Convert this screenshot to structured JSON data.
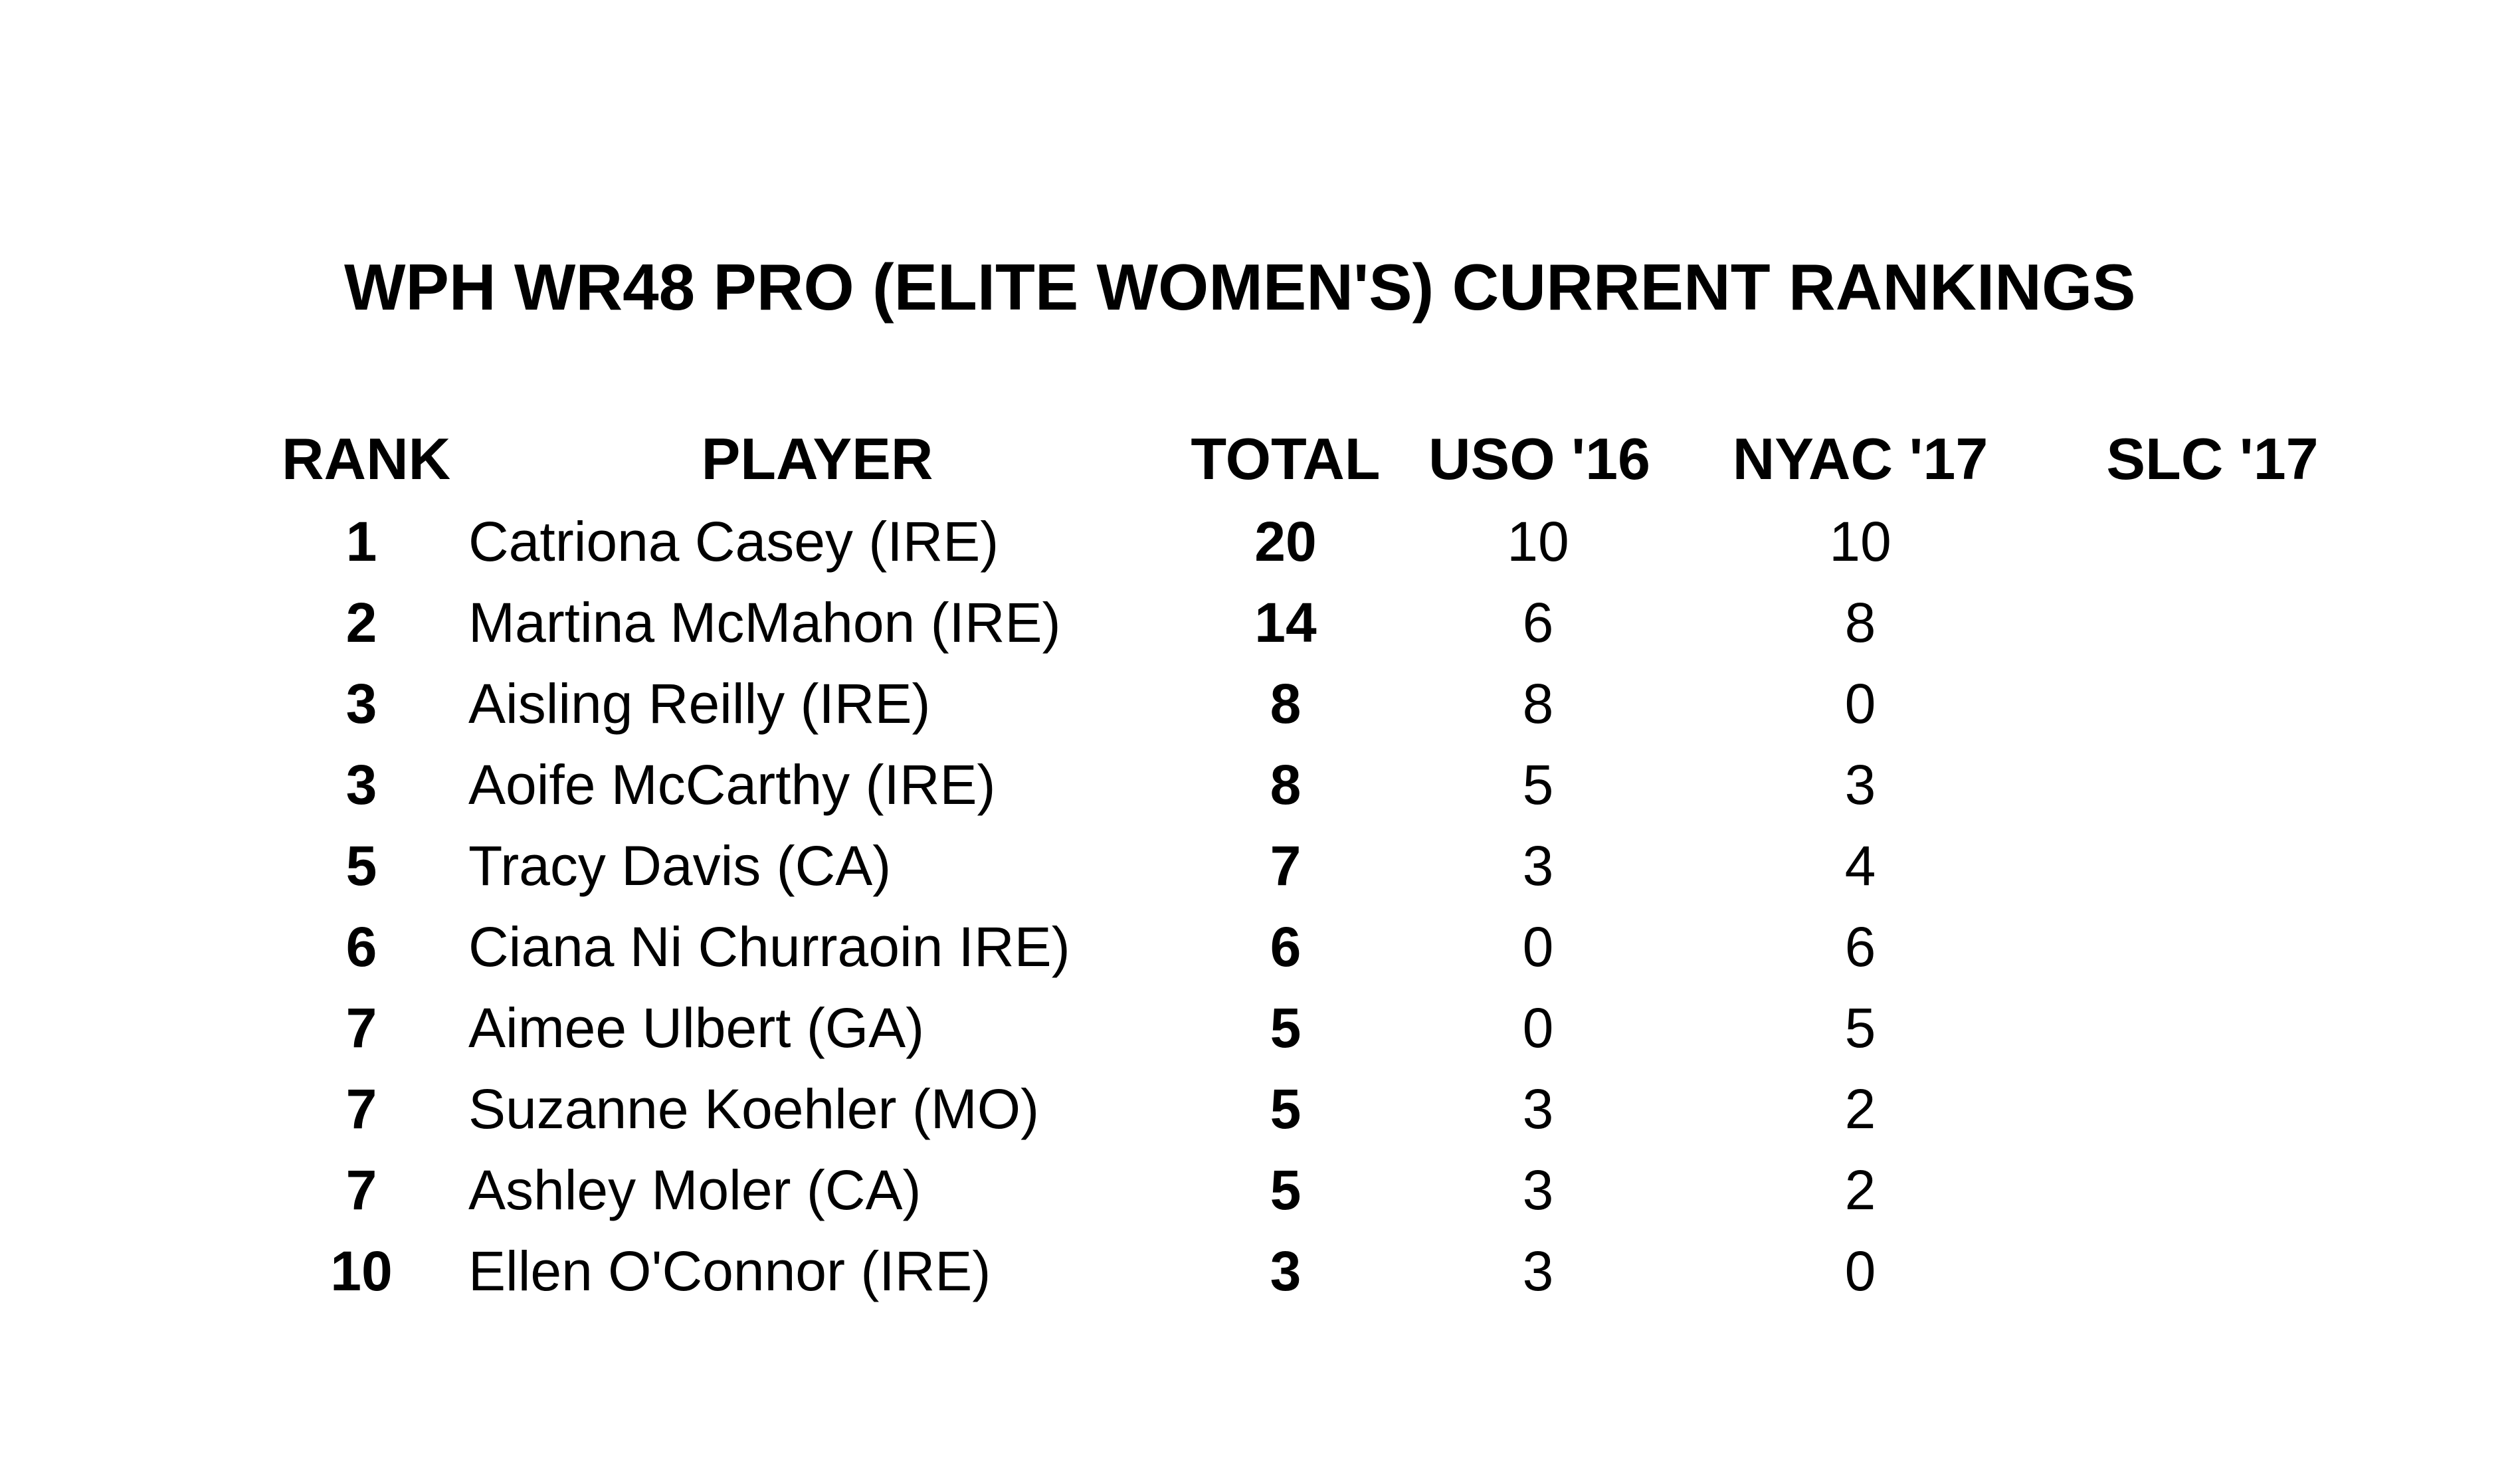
{
  "title": "WPH WR48 PRO (ELITE WOMEN'S) CURRENT RANKINGS",
  "headers": {
    "rank": "RANK",
    "player": "PLAYER",
    "total": "TOTAL",
    "uso16": "USO '16",
    "nyac17": "NYAC '17",
    "slc17": "SLC '17"
  },
  "rows": [
    {
      "rank": "1",
      "player": "Catriona Casey (IRE)",
      "total": "20",
      "uso16": "10",
      "nyac17": "10",
      "slc17": ""
    },
    {
      "rank": "2",
      "player": "Martina McMahon (IRE)",
      "total": "14",
      "uso16": "6",
      "nyac17": "8",
      "slc17": ""
    },
    {
      "rank": "3",
      "player": "Aisling Reilly (IRE)",
      "total": "8",
      "uso16": "8",
      "nyac17": "0",
      "slc17": ""
    },
    {
      "rank": "3",
      "player": "Aoife McCarthy (IRE)",
      "total": "8",
      "uso16": "5",
      "nyac17": "3",
      "slc17": ""
    },
    {
      "rank": "5",
      "player": "Tracy Davis (CA)",
      "total": "7",
      "uso16": "3",
      "nyac17": "4",
      "slc17": ""
    },
    {
      "rank": "6",
      "player": "Ciana Ni Churraoin IRE)",
      "total": "6",
      "uso16": "0",
      "nyac17": "6",
      "slc17": ""
    },
    {
      "rank": "7",
      "player": "Aimee Ulbert (GA)",
      "total": "5",
      "uso16": "0",
      "nyac17": "5",
      "slc17": ""
    },
    {
      "rank": "7",
      "player": "Suzanne Koehler (MO)",
      "total": "5",
      "uso16": "3",
      "nyac17": "2",
      "slc17": ""
    },
    {
      "rank": "7",
      "player": "Ashley Moler (CA)",
      "total": "5",
      "uso16": "3",
      "nyac17": "2",
      "slc17": ""
    },
    {
      "rank": "10",
      "player": "Ellen O'Connor (IRE)",
      "total": "3",
      "uso16": "3",
      "nyac17": "0",
      "slc17": ""
    }
  ]
}
